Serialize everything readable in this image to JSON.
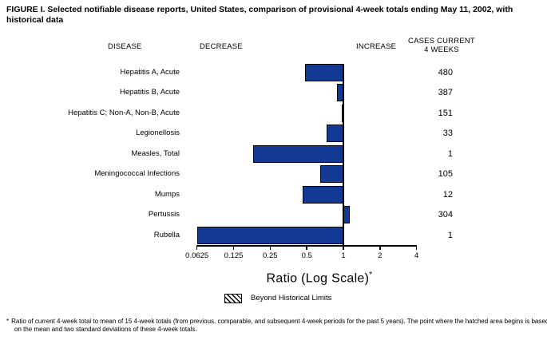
{
  "title": "FIGURE I. Selected notifiable disease reports, United States, comparison of provisional 4-week totals ending May 11, 2002, with historical data",
  "columns": {
    "disease": "DISEASE",
    "decrease": "DECREASE",
    "increase": "INCREASE",
    "cases_line1": "CASES CURRENT",
    "cases_line2": "4 WEEKS"
  },
  "chart_data": {
    "type": "bar",
    "orientation": "horizontal",
    "scale": "log2",
    "title": "Comparison of provisional 4-week totals ending May 11, 2002, with historical data",
    "categories": [
      "Hepatitis A, Acute",
      "Hepatitis B, Acute",
      "Hepatitis C; Non-A, Non-B, Acute",
      "Legionellosis",
      "Measles, Total",
      "Meningococcal Infections",
      "Mumps",
      "Pertussis",
      "Rubella"
    ],
    "series": [
      {
        "name": "Ratio of current 4-week total to historical mean",
        "values": [
          0.48,
          0.89,
          0.98,
          0.73,
          0.18,
          0.64,
          0.46,
          1.13,
          0.0625
        ]
      }
    ],
    "cases_current_4_weeks": [
      480,
      387,
      151,
      33,
      1,
      105,
      12,
      304,
      1
    ],
    "xlabel": "Ratio (Log Scale)",
    "xlabel_note_marker": "*",
    "x_ticks": [
      0.0625,
      0.125,
      0.25,
      0.5,
      1,
      2,
      4
    ],
    "x_tick_labels": [
      "0.0625",
      "0.125",
      "0.25",
      "0.5",
      "1",
      "2",
      "4"
    ],
    "xlim": [
      0.0625,
      4
    ],
    "baseline": 1,
    "grid": false,
    "bar_color": "#123A94",
    "axis_color": "#000000",
    "legend_position": "bottom",
    "legend": [
      {
        "label": "Beyond Historical Limits",
        "swatch": "black-diagonal-hatch"
      }
    ]
  },
  "footnote": {
    "marker": "*",
    "text": "Ratio of current 4-week total to mean of 15 4-week totals (from previous, comparable, and subsequent 4-week periods for the past 5 years). The point where the hatched area begins is based on the mean and two standard deviations of these 4-week totals."
  }
}
